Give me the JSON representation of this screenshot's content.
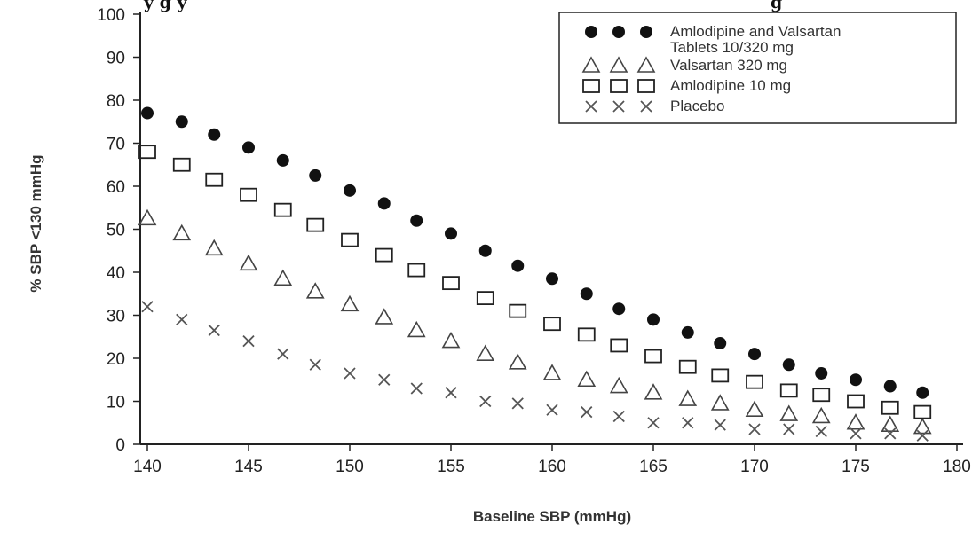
{
  "chart_data": {
    "type": "scatter",
    "title_fragment": "y                      g y",
    "title_fragment_end": "g",
    "xlabel": "Baseline SBP (mmHg)",
    "ylabel": "% SBP <130 mmHg",
    "xlim": [
      139,
      180
    ],
    "ylim": [
      0,
      100
    ],
    "x_ticks": [
      "140",
      "145",
      "150",
      "155",
      "160",
      "165",
      "170",
      "175",
      "180"
    ],
    "y_ticks": [
      "0",
      "10",
      "20",
      "30",
      "40",
      "50",
      "60",
      "70",
      "80",
      "90",
      "100"
    ],
    "grid": false,
    "legend_position": "top-right",
    "x": [
      140.0,
      141.7,
      143.3,
      145.0,
      146.7,
      148.3,
      150.0,
      151.7,
      153.3,
      155.0,
      156.7,
      158.3,
      160.0,
      161.7,
      163.3,
      165.0,
      166.7,
      168.3,
      170.0,
      171.7,
      173.3,
      175.0,
      176.7,
      178.3
    ],
    "series": [
      {
        "name": "Amlodipine and Valsartan Tablets 10/320 mg",
        "marker": "filled-circle",
        "color": "#111111",
        "values": [
          77,
          75,
          72,
          69,
          66,
          62.5,
          59,
          56,
          52,
          49,
          45,
          41.5,
          38.5,
          35,
          31.5,
          29,
          26,
          23.5,
          21,
          18.5,
          16.5,
          15,
          13.5,
          12
        ]
      },
      {
        "name": "Valsartan 320 mg",
        "marker": "open-triangle",
        "color": "#333333",
        "values": [
          52.5,
          49,
          45.5,
          42,
          38.5,
          35.5,
          32.5,
          29.5,
          26.5,
          24,
          21,
          19,
          16.5,
          15,
          13.5,
          12,
          10.5,
          9.5,
          8,
          7,
          6.5,
          5,
          4.5,
          4
        ]
      },
      {
        "name": "Amlodipine 10 mg",
        "marker": "open-square",
        "color": "#222222",
        "values": [
          68,
          65,
          61.5,
          58,
          54.5,
          51,
          47.5,
          44,
          40.5,
          37.5,
          34,
          31,
          28,
          25.5,
          23,
          20.5,
          18,
          16,
          14.5,
          12.5,
          11.5,
          10,
          8.5,
          7.5
        ]
      },
      {
        "name": "Placebo",
        "marker": "x",
        "color": "#444444",
        "values": [
          32,
          29,
          26.5,
          24,
          21,
          18.5,
          16.5,
          15,
          13,
          12,
          10,
          9.5,
          8,
          7.5,
          6.5,
          5,
          5,
          4.5,
          3.5,
          3.5,
          3,
          2.5,
          2.5,
          2
        ]
      }
    ],
    "legend": [
      {
        "line1": "Amlodipine and Valsartan",
        "line2": "Tablets 10/320 mg",
        "marker": "filled-circle"
      },
      {
        "line1": "Valsartan 320 mg",
        "marker": "open-triangle"
      },
      {
        "line1": "Amlodipine 10 mg",
        "marker": "open-square"
      },
      {
        "line1": "Placebo",
        "marker": "x"
      }
    ]
  }
}
